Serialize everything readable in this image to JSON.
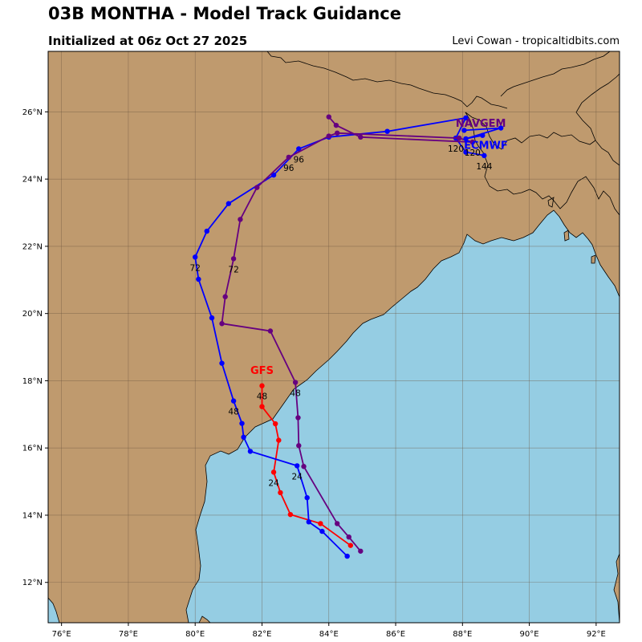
{
  "header": {
    "title": "03B MONTHA - Model Track Guidance",
    "subtitle": "Initialized at 06z Oct 27 2025",
    "credit": "Levi Cowan - tropicaltidbits.com"
  },
  "map": {
    "lon_range": [
      75.6,
      92.7
    ],
    "lat_range": [
      10.8,
      27.8
    ],
    "land_color": "#bf9a6e",
    "ocean_color": "#95cde3",
    "grid_color": "#6b5540",
    "lon_ticks": [
      {
        "value": 76,
        "label": "76°E"
      },
      {
        "value": 78,
        "label": "78°E"
      },
      {
        "value": 80,
        "label": "80°E"
      },
      {
        "value": 82,
        "label": "82°E"
      },
      {
        "value": 84,
        "label": "84°E"
      },
      {
        "value": 86,
        "label": "86°E"
      },
      {
        "value": 88,
        "label": "88°E"
      },
      {
        "value": 90,
        "label": "90°E"
      },
      {
        "value": 92,
        "label": "92°E"
      }
    ],
    "lat_ticks": [
      {
        "value": 12,
        "label": "12°N"
      },
      {
        "value": 14,
        "label": "14°N"
      },
      {
        "value": 16,
        "label": "16°N"
      },
      {
        "value": 18,
        "label": "18°N"
      },
      {
        "value": 20,
        "label": "20°N"
      },
      {
        "value": 22,
        "label": "22°N"
      },
      {
        "value": 24,
        "label": "24°N"
      },
      {
        "value": 26,
        "label": "26°N"
      }
    ]
  },
  "models": [
    {
      "name": "GFS",
      "color": "#ff0000",
      "label_at": {
        "lon": 82.0,
        "lat": 18.2
      },
      "track": [
        {
          "lon": 84.65,
          "lat": 13.1
        },
        {
          "lon": 83.75,
          "lat": 13.75
        },
        {
          "lon": 82.85,
          "lat": 14.02
        },
        {
          "lon": 82.55,
          "lat": 14.67
        },
        {
          "lon": 82.35,
          "lat": 15.28
        },
        {
          "lon": 82.5,
          "lat": 16.23
        },
        {
          "lon": 82.4,
          "lat": 16.72
        },
        {
          "lon": 82.0,
          "lat": 17.23
        },
        {
          "lon": 82.0,
          "lat": 17.85
        }
      ],
      "hour_labels": [
        {
          "text": "24",
          "lon": 82.35,
          "lat": 15.28
        },
        {
          "text": "48",
          "lon": 82.0,
          "lat": 17.85
        }
      ]
    },
    {
      "name": "ECMWF",
      "color": "#0000ff",
      "label_at": {
        "lon": 88.7,
        "lat": 24.9
      },
      "track": [
        {
          "lon": 84.55,
          "lat": 12.78
        },
        {
          "lon": 83.8,
          "lat": 13.52
        },
        {
          "lon": 83.4,
          "lat": 13.8
        },
        {
          "lon": 83.35,
          "lat": 14.52
        },
        {
          "lon": 83.05,
          "lat": 15.47
        },
        {
          "lon": 81.65,
          "lat": 15.9
        },
        {
          "lon": 81.45,
          "lat": 16.32
        },
        {
          "lon": 81.4,
          "lat": 16.73
        },
        {
          "lon": 81.15,
          "lat": 17.4
        },
        {
          "lon": 80.8,
          "lat": 18.52
        },
        {
          "lon": 80.5,
          "lat": 19.87
        },
        {
          "lon": 80.1,
          "lat": 21.02
        },
        {
          "lon": 80.0,
          "lat": 21.68
        },
        {
          "lon": 80.35,
          "lat": 22.45
        },
        {
          "lon": 81.0,
          "lat": 23.27
        },
        {
          "lon": 82.35,
          "lat": 24.12
        },
        {
          "lon": 83.1,
          "lat": 24.9
        },
        {
          "lon": 84.0,
          "lat": 25.25
        },
        {
          "lon": 85.75,
          "lat": 25.42
        },
        {
          "lon": 88.1,
          "lat": 25.82
        },
        {
          "lon": 87.8,
          "lat": 25.22
        },
        {
          "lon": 88.1,
          "lat": 24.8
        },
        {
          "lon": 88.65,
          "lat": 24.7
        }
      ],
      "hour_labels": [
        {
          "text": "24",
          "lon": 83.05,
          "lat": 15.47
        },
        {
          "text": "48",
          "lon": 81.15,
          "lat": 17.4
        },
        {
          "text": "72",
          "lon": 80.0,
          "lat": 21.68
        },
        {
          "text": "96",
          "lon": 83.1,
          "lat": 24.9
        },
        {
          "text": "120",
          "lon": 87.8,
          "lat": 25.22
        },
        {
          "text": "144",
          "lon": 88.65,
          "lat": 24.7
        }
      ]
    },
    {
      "name": "NAVGEM",
      "color": "#660080",
      "label_at": {
        "lon": 88.55,
        "lat": 25.55
      },
      "track": [
        {
          "lon": 84.95,
          "lat": 12.93
        },
        {
          "lon": 84.6,
          "lat": 13.35
        },
        {
          "lon": 84.25,
          "lat": 13.75
        },
        {
          "lon": 83.25,
          "lat": 15.45
        },
        {
          "lon": 83.1,
          "lat": 16.07
        },
        {
          "lon": 83.08,
          "lat": 16.9
        },
        {
          "lon": 83.0,
          "lat": 17.95
        },
        {
          "lon": 82.25,
          "lat": 19.48
        },
        {
          "lon": 80.8,
          "lat": 19.7
        },
        {
          "lon": 80.9,
          "lat": 20.5
        },
        {
          "lon": 81.15,
          "lat": 21.63
        },
        {
          "lon": 81.35,
          "lat": 22.8
        },
        {
          "lon": 81.85,
          "lat": 23.75
        },
        {
          "lon": 82.8,
          "lat": 24.65
        },
        {
          "lon": 84.0,
          "lat": 25.28
        },
        {
          "lon": 84.25,
          "lat": 25.37
        },
        {
          "lon": 87.9,
          "lat": 25.22
        },
        {
          "lon": 88.3,
          "lat": 25.1
        },
        {
          "lon": 84.95,
          "lat": 25.25
        },
        {
          "lon": 84.22,
          "lat": 25.6
        },
        {
          "lon": 84.0,
          "lat": 25.85
        }
      ],
      "hour_labels": [
        {
          "text": "48",
          "lon": 83.0,
          "lat": 17.95
        },
        {
          "text": "72",
          "lon": 81.15,
          "lat": 21.63
        },
        {
          "text": "96",
          "lon": 82.8,
          "lat": 24.65
        },
        {
          "text": "120",
          "lon": 88.3,
          "lat": 25.1
        }
      ]
    },
    {
      "name": "",
      "color": "#0000ff",
      "track": [
        {
          "lon": 88.05,
          "lat": 25.45
        },
        {
          "lon": 89.15,
          "lat": 25.52
        },
        {
          "lon": 88.1,
          "lat": 25.2
        },
        {
          "lon": 88.6,
          "lat": 25.3
        }
      ],
      "hour_labels": []
    }
  ]
}
